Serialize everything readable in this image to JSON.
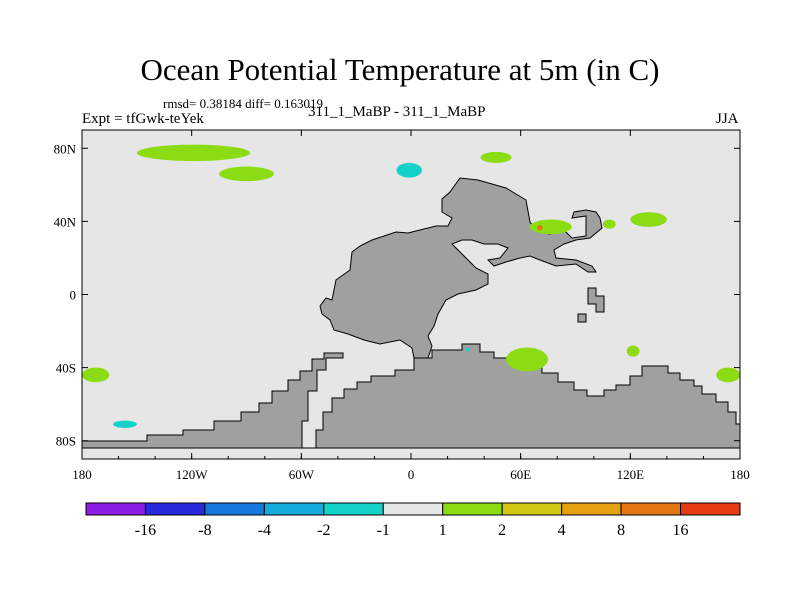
{
  "title": "Ocean Potential Temperature at 5m (in C)",
  "stats": "rmsd= 0.38184 diff= 0.163019",
  "experiment": "Expt = tfGwk-teYek",
  "runs": "311_1_MaBP - 311_1_MaBP",
  "season": "JJA",
  "chart_data": {
    "type": "heatmap",
    "title": "Ocean Potential Temperature at 5m (in C)",
    "projection": "cylindrical equidistant",
    "xlim": [
      -180,
      180
    ],
    "ylim": [
      -90,
      90
    ],
    "x_ticks": [
      {
        "value": -180,
        "label": "180"
      },
      {
        "value": -120,
        "label": "120W"
      },
      {
        "value": -60,
        "label": "60W"
      },
      {
        "value": 0,
        "label": "0"
      },
      {
        "value": 60,
        "label": "60E"
      },
      {
        "value": 120,
        "label": "120E"
      },
      {
        "value": 180,
        "label": "180"
      }
    ],
    "y_ticks": [
      {
        "value": 80,
        "label": "80N"
      },
      {
        "value": 40,
        "label": "40N"
      },
      {
        "value": 0,
        "label": "0"
      },
      {
        "value": -40,
        "label": "40S"
      },
      {
        "value": -80,
        "label": "80S"
      }
    ],
    "colorbar": {
      "labels": [
        "-16",
        "-8",
        "-4",
        "-2",
        "-1",
        "1",
        "2",
        "4",
        "8",
        "16"
      ],
      "colors": [
        "#8c1ee6",
        "#2828dc",
        "#1478dc",
        "#14aadc",
        "#14d2c8",
        "#e6e6e6",
        "#8cdc14",
        "#d2c814",
        "#e6a014",
        "#e67814",
        "#e63c14"
      ]
    },
    "background_color": "#e6e6e6",
    "land_color": "#a0a0a0",
    "anomaly_regions": [
      {
        "bin": "1 to 2",
        "color": "#8cdc14",
        "lon": [
          -150,
          -88
        ],
        "lat": [
          73,
          82
        ]
      },
      {
        "bin": "1 to 2",
        "color": "#8cdc14",
        "lon": [
          -105,
          -75
        ],
        "lat": [
          62,
          70
        ]
      },
      {
        "bin": "-2 to -1",
        "color": "#14d2c8",
        "lon": [
          -8,
          6
        ],
        "lat": [
          64,
          72
        ]
      },
      {
        "bin": "1 to 2",
        "color": "#8cdc14",
        "lon": [
          38,
          55
        ],
        "lat": [
          72,
          78
        ]
      },
      {
        "bin": "1 to 2",
        "color": "#8cdc14",
        "lon": [
          65,
          88
        ],
        "lat": [
          33,
          41
        ]
      },
      {
        "bin": "8 to 16",
        "color": "#e67814",
        "lon": [
          69,
          72
        ],
        "lat": [
          35,
          38
        ]
      },
      {
        "bin": "1 to 2",
        "color": "#8cdc14",
        "lon": [
          105,
          112
        ],
        "lat": [
          36,
          41
        ]
      },
      {
        "bin": "1 to 2",
        "color": "#8cdc14",
        "lon": [
          120,
          140
        ],
        "lat": [
          37,
          45
        ]
      },
      {
        "bin": "1 to 2",
        "color": "#8cdc14",
        "lon": [
          52,
          75
        ],
        "lat": [
          -42,
          -29
        ]
      },
      {
        "bin": "1 to 2",
        "color": "#8cdc14",
        "lon": [
          118,
          125
        ],
        "lat": [
          -34,
          -28
        ]
      },
      {
        "bin": "1 to 2",
        "color": "#8cdc14",
        "lon": [
          -180,
          -165
        ],
        "lat": [
          -48,
          -40
        ]
      },
      {
        "bin": "1 to 2",
        "color": "#8cdc14",
        "lon": [
          167,
          180
        ],
        "lat": [
          -48,
          -40
        ]
      },
      {
        "bin": "-2 to -1",
        "color": "#14d2c8",
        "lon": [
          -163,
          -150
        ],
        "lat": [
          -73,
          -69
        ]
      },
      {
        "bin": "-2 to -1",
        "color": "#14d2c8",
        "lon": [
          30,
          32
        ],
        "lat": [
          -31,
          -29
        ]
      }
    ]
  }
}
